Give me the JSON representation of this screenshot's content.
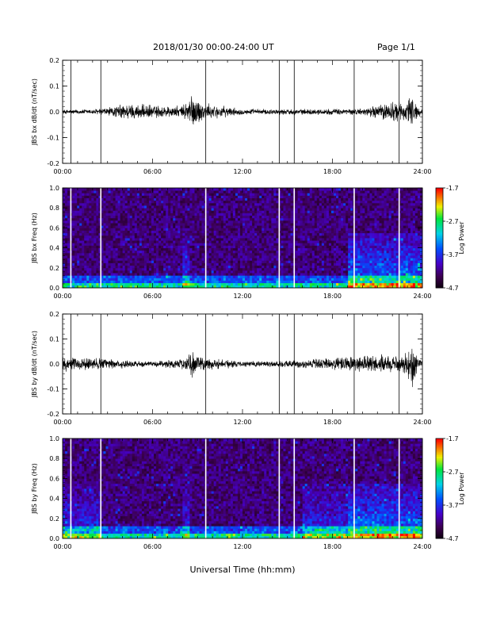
{
  "header": {
    "title": "2018/01/30  00:00-24:00 UT",
    "page": "Page 1/1"
  },
  "xlabel": "Universal Time (hh:mm)",
  "chart_data": [
    {
      "type": "line",
      "ylabel": "JBS bx dB/dt (nT/sec)",
      "ylim": [
        -0.2,
        0.2
      ],
      "yticks": [
        "-0.2",
        "-0.1",
        "0.0",
        "0.1",
        "0.2"
      ],
      "x_ticks": [
        "00:00",
        "06:00",
        "12:00",
        "18:00",
        "24:00"
      ],
      "gap_markers_hours": [
        0.55,
        2.55,
        9.55,
        14.45,
        15.45,
        19.45,
        22.45
      ],
      "series": [
        {
          "x_hours": [
            0,
            2,
            3.5,
            4,
            8,
            8.5,
            9.5,
            12,
            16,
            20,
            21,
            22,
            23,
            23.3,
            23.7,
            24
          ],
          "y_amplitude": [
            0.008,
            0.01,
            0.02,
            0.03,
            0.02,
            0.07,
            0.03,
            0.01,
            0.01,
            0.012,
            0.025,
            0.04,
            0.035,
            0.08,
            0.02,
            0.01
          ]
        }
      ]
    },
    {
      "type": "heatmap",
      "ylabel": "JBS bx Freq (Hz)",
      "ylim": [
        0,
        1.0
      ],
      "yticks": [
        "0.0",
        "0.2",
        "0.4",
        "0.6",
        "0.8",
        "1.0"
      ],
      "x_ticks": [
        "00:00",
        "06:00",
        "12:00",
        "18:00",
        "24:00"
      ],
      "gap_markers_hours": [
        0.55,
        2.55,
        9.55,
        14.45,
        15.45,
        19.45,
        22.45
      ],
      "colorbar": {
        "label": "Log10 Power",
        "ticks": [
          "-1.7",
          "-2.7",
          "-3.7",
          "-4.7"
        ],
        "range": [
          -4.7,
          -1.7
        ]
      },
      "enhanced_regions_hours": [
        [
          8.0,
          8.4
        ],
        [
          19.0,
          24.0
        ]
      ]
    },
    {
      "type": "line",
      "ylabel": "JBS by dB/dt (nT/sec)",
      "ylim": [
        -0.2,
        0.2
      ],
      "yticks": [
        "-0.2",
        "-0.1",
        "0.0",
        "0.1",
        "0.2"
      ],
      "x_ticks": [
        "00:00",
        "06:00",
        "12:00",
        "18:00",
        "24:00"
      ],
      "gap_markers_hours": [
        0.55,
        2.55,
        9.55,
        14.45,
        15.45,
        19.45,
        22.45
      ],
      "series": [
        {
          "x_hours": [
            0,
            1,
            2,
            3,
            6,
            8,
            8.5,
            9.5,
            12,
            16,
            18,
            20,
            21,
            22,
            23,
            23.3,
            23.7,
            24
          ],
          "y_amplitude": [
            0.03,
            0.02,
            0.025,
            0.02,
            0.01,
            0.02,
            0.05,
            0.025,
            0.01,
            0.015,
            0.025,
            0.03,
            0.035,
            0.03,
            0.04,
            0.1,
            0.02,
            0.01
          ]
        }
      ]
    },
    {
      "type": "heatmap",
      "ylabel": "JBS by Freq (Hz)",
      "ylim": [
        0,
        1.0
      ],
      "yticks": [
        "0.0",
        "0.2",
        "0.4",
        "0.6",
        "0.8",
        "1.0"
      ],
      "x_ticks": [
        "00:00",
        "06:00",
        "12:00",
        "18:00",
        "24:00"
      ],
      "gap_markers_hours": [
        0.55,
        2.55,
        9.55,
        14.45,
        15.45,
        19.45,
        22.45
      ],
      "colorbar": {
        "label": "Log10 Power",
        "ticks": [
          "-1.7",
          "-2.7",
          "-3.7",
          "-4.7"
        ],
        "range": [
          -4.7,
          -1.7
        ]
      },
      "enhanced_regions_hours": [
        [
          0,
          2.5
        ],
        [
          8.0,
          8.4
        ],
        [
          16.0,
          24.0
        ]
      ]
    }
  ]
}
